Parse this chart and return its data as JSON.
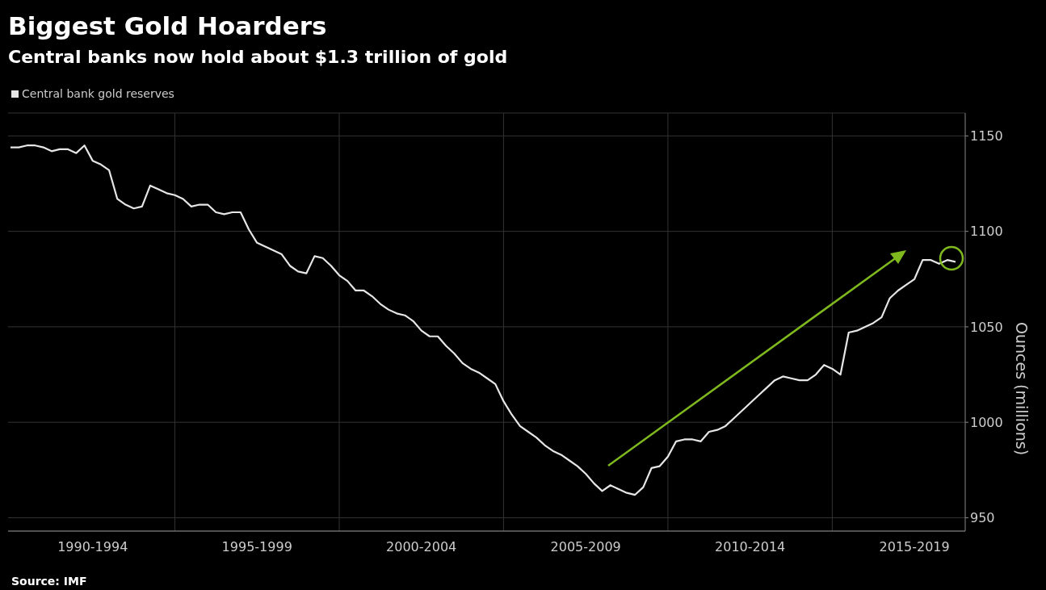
{
  "chart_data": {
    "type": "line",
    "title": "Biggest Gold Hoarders",
    "subtitle": "Central banks now hold about $1.3 trillion of gold",
    "ylabel": "Ounces (millions)",
    "annotations": [
      "Source: IMF"
    ],
    "legend": "top left",
    "grid": true,
    "categories": [
      null,
      null,
      null,
      null,
      null,
      null,
      null,
      null,
      null,
      null,
      "1990-1994",
      null,
      null,
      null,
      null,
      null,
      null,
      null,
      null,
      null,
      null,
      null,
      null,
      null,
      null,
      null,
      null,
      null,
      null,
      null,
      "1995-1999",
      null,
      null,
      null,
      null,
      null,
      null,
      null,
      null,
      null,
      null,
      null,
      null,
      null,
      null,
      null,
      null,
      null,
      null,
      null,
      "2000-2004",
      null,
      null,
      null,
      null,
      null,
      null,
      null,
      null,
      null,
      null,
      null,
      null,
      null,
      null,
      null,
      null,
      null,
      null,
      null,
      "2005-2009",
      null,
      null,
      null,
      null,
      null,
      null,
      null,
      null,
      null,
      null,
      null,
      null,
      null,
      null,
      null,
      null,
      null,
      null,
      null,
      "2010-2014",
      null,
      null,
      null,
      null,
      null,
      null,
      null,
      null,
      null,
      null,
      null,
      null,
      null,
      null,
      null,
      null,
      null,
      null,
      null,
      "2015-2019",
      null,
      null,
      null,
      null,
      null
    ],
    "ylim": [
      943,
      1162
    ],
    "yticks": [
      950,
      1000,
      1050,
      1100,
      1150
    ],
    "series": [
      {
        "name": "Central bank gold reserves",
        "color": "#e6e6e6",
        "values": [
          1144,
          1144,
          1145,
          1145,
          1144,
          1142,
          1143,
          1143,
          1141,
          1145,
          1137,
          1135,
          1132,
          1117,
          1114,
          1112,
          1113,
          1124,
          1122,
          1120,
          1119,
          1117,
          1113,
          1114,
          1114,
          1110,
          1109,
          1110,
          1110,
          1101,
          1094,
          1092,
          1090,
          1088,
          1082,
          1079,
          1078,
          1087,
          1086,
          1082,
          1077,
          1074,
          1069,
          1069,
          1066,
          1062,
          1059,
          1057,
          1056,
          1053,
          1048,
          1045,
          1045,
          1040,
          1036,
          1031,
          1028,
          1026,
          1023,
          1020,
          1011,
          1004,
          998,
          995,
          992,
          988,
          985,
          983,
          980,
          977,
          973,
          968,
          964,
          967,
          965,
          963,
          962,
          966,
          976,
          977,
          982,
          990,
          991,
          991,
          990,
          995,
          996,
          998,
          1002,
          1006,
          1010,
          1014,
          1018,
          1022,
          1024,
          1023,
          1022,
          1022,
          1025,
          1030,
          1028,
          1025,
          1047,
          1048,
          1050,
          1052,
          1055,
          1065,
          1069,
          1072,
          1075,
          1085,
          1085,
          1083,
          1085,
          1084
        ]
      }
    ]
  }
}
